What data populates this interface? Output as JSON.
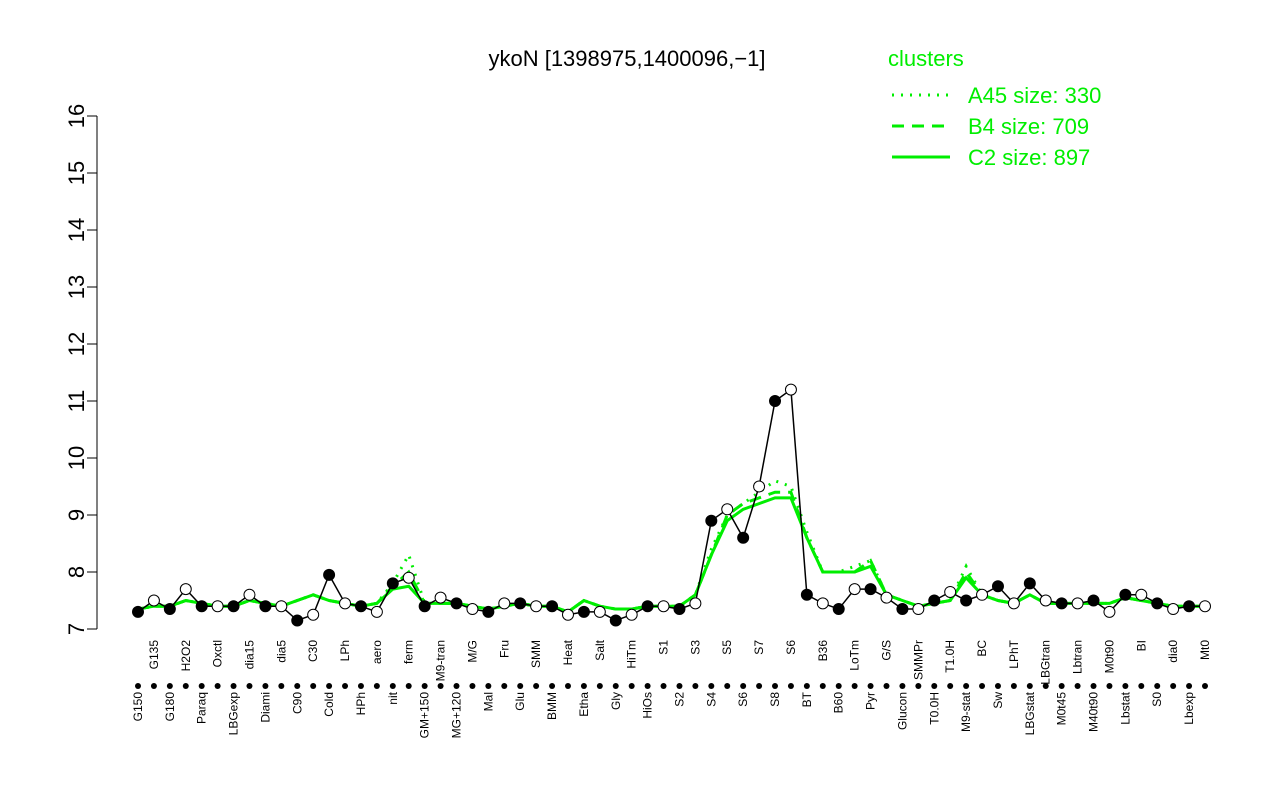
{
  "chart_data": {
    "type": "line",
    "title": "ykoN [1398975,1400096,−1]",
    "legend_title": "clusters",
    "categories": [
      "G150",
      "G135",
      "G180",
      "H2O2",
      "Paraq",
      "Oxctl",
      "LBGexp",
      "dia15",
      "Diami",
      "dia5",
      "C90",
      "C30",
      "Cold",
      "LPh",
      "HPh",
      "aero",
      "nit",
      "ferm",
      "GM+150",
      "M9-tran",
      "MG+120",
      "M/G",
      "Mal",
      "Fru",
      "Glu",
      "SMM",
      "BMM",
      "Heat",
      "Etha",
      "Salt",
      "Gly",
      "HiTm",
      "HiOs",
      "S1",
      "S2",
      "S3",
      "S4",
      "S5",
      "S6",
      "S7",
      "S8",
      "S6",
      "BT",
      "B36",
      "B60",
      "LoTm",
      "Pyr",
      "G/S",
      "Glucon",
      "SMMPr",
      "T0.0H",
      "T1.0H",
      "M9-stat",
      "BC",
      "Sw",
      "LPhT",
      "LBGstat",
      "LBGtran",
      "M0t45",
      "Lbtran",
      "M40t90",
      "M0t90",
      "Lbstat",
      "BI",
      "S0",
      "dia0",
      "Lbexp",
      "Mt0"
    ],
    "values": [
      7.3,
      7.5,
      7.35,
      7.7,
      7.4,
      7.4,
      7.4,
      7.6,
      7.4,
      7.4,
      7.15,
      7.25,
      7.95,
      7.45,
      7.4,
      7.3,
      7.8,
      7.9,
      7.4,
      7.55,
      7.45,
      7.35,
      7.3,
      7.45,
      7.45,
      7.4,
      7.4,
      7.25,
      7.3,
      7.3,
      7.15,
      7.25,
      7.4,
      7.4,
      7.35,
      7.45,
      8.9,
      9.1,
      8.6,
      9.5,
      11.0,
      11.2,
      7.6,
      7.45,
      7.35,
      7.7,
      7.7,
      7.55,
      7.35,
      7.35,
      7.5,
      7.65,
      7.5,
      7.6,
      7.75,
      7.45,
      7.8,
      7.5,
      7.45,
      7.45,
      7.5,
      7.3,
      7.6,
      7.6,
      7.45,
      7.35,
      7.4,
      7.4
    ],
    "color": "#000000",
    "series": [
      {
        "name": "A45 size: 330",
        "color": "#00ee00",
        "dash": "dotted",
        "values": [
          7.35,
          7.4,
          7.4,
          7.5,
          7.45,
          7.4,
          7.4,
          7.5,
          7.45,
          7.4,
          7.5,
          7.6,
          7.5,
          7.45,
          7.4,
          7.45,
          7.8,
          8.3,
          7.45,
          7.45,
          7.45,
          7.4,
          7.35,
          7.4,
          7.45,
          7.4,
          7.4,
          7.3,
          7.5,
          7.4,
          7.35,
          7.35,
          7.4,
          7.4,
          7.4,
          7.6,
          8.4,
          9.0,
          9.2,
          9.4,
          9.6,
          9.5,
          8.7,
          8.0,
          8.0,
          8.1,
          8.2,
          7.6,
          7.5,
          7.4,
          7.45,
          7.5,
          8.1,
          7.6,
          7.5,
          7.45,
          7.6,
          7.45,
          7.45,
          7.45,
          7.45,
          7.45,
          7.55,
          7.5,
          7.45,
          7.4,
          7.4,
          7.4
        ]
      },
      {
        "name": "B4 size: 709",
        "color": "#00ee00",
        "dash": "dashed",
        "values": [
          7.35,
          7.4,
          7.4,
          7.5,
          7.45,
          7.4,
          7.4,
          7.5,
          7.45,
          7.4,
          7.5,
          7.6,
          7.5,
          7.45,
          7.4,
          7.45,
          7.75,
          8.0,
          7.45,
          7.45,
          7.45,
          7.4,
          7.35,
          7.4,
          7.45,
          7.4,
          7.4,
          7.3,
          7.5,
          7.4,
          7.35,
          7.35,
          7.4,
          7.4,
          7.4,
          7.6,
          8.3,
          9.0,
          9.2,
          9.3,
          9.4,
          9.4,
          8.6,
          8.0,
          8.0,
          8.0,
          8.2,
          7.6,
          7.5,
          7.4,
          7.45,
          7.5,
          8.0,
          7.6,
          7.5,
          7.45,
          7.6,
          7.45,
          7.45,
          7.45,
          7.45,
          7.45,
          7.55,
          7.5,
          7.45,
          7.4,
          7.4,
          7.4
        ]
      },
      {
        "name": "C2 size: 897",
        "color": "#00ee00",
        "dash": "solid",
        "values": [
          7.35,
          7.4,
          7.4,
          7.5,
          7.45,
          7.4,
          7.4,
          7.5,
          7.45,
          7.4,
          7.5,
          7.6,
          7.5,
          7.45,
          7.4,
          7.45,
          7.7,
          7.75,
          7.45,
          7.45,
          7.45,
          7.4,
          7.35,
          7.4,
          7.45,
          7.4,
          7.4,
          7.3,
          7.5,
          7.4,
          7.35,
          7.35,
          7.4,
          7.4,
          7.4,
          7.6,
          8.3,
          8.9,
          9.1,
          9.2,
          9.3,
          9.3,
          8.6,
          8.0,
          8.0,
          8.0,
          8.1,
          7.6,
          7.5,
          7.4,
          7.45,
          7.5,
          7.9,
          7.6,
          7.5,
          7.45,
          7.6,
          7.45,
          7.45,
          7.45,
          7.45,
          7.45,
          7.55,
          7.5,
          7.45,
          7.4,
          7.4,
          7.4
        ]
      }
    ],
    "ylim": [
      7,
      16
    ],
    "yticks": [
      7,
      8,
      9,
      10,
      11,
      12,
      13,
      14,
      15,
      16
    ],
    "grid": false,
    "legend": "top-right"
  }
}
